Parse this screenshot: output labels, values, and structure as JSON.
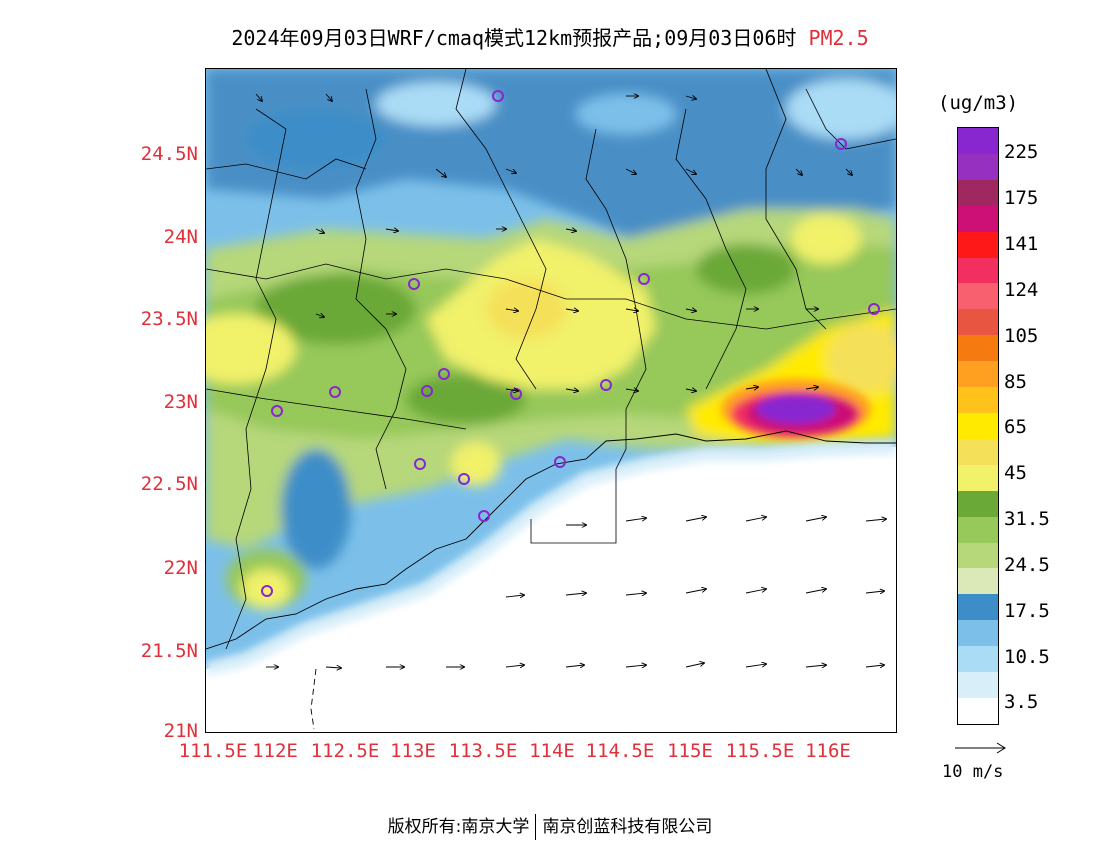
{
  "title": {
    "main": "2024年09月03日WRF/cmaq模式12km预报产品;09月03日06时",
    "pollutant": "PM2.5"
  },
  "axes": {
    "y_ticks": [
      "24.5N",
      "24N",
      "23.5N",
      "23N",
      "22.5N",
      "22N",
      "21.5N",
      "21N"
    ],
    "x_ticks": [
      "111.5E",
      "112E",
      "112.5E",
      "113E",
      "113.5E",
      "114E",
      "114.5E",
      "115E",
      "115.5E",
      "116E"
    ]
  },
  "colorbar": {
    "unit": "(ug/m3)",
    "labels": [
      "225",
      "175",
      "141",
      "124",
      "105",
      "85",
      "65",
      "45",
      "31.5",
      "24.5",
      "17.5",
      "10.5",
      "3.5"
    ],
    "colors": [
      "#ffffff",
      "#d8eef9",
      "#aadcf6",
      "#7cc0ea",
      "#3d8ec8",
      "#dbe9b8",
      "#b6d77a",
      "#96c85a",
      "#6aa838",
      "#f1f16a",
      "#f5e05a",
      "#ffea00",
      "#ffc21a",
      "#ffa020",
      "#f57a10",
      "#e85540",
      "#f86070",
      "#f23060",
      "#ff1818",
      "#cc1075",
      "#a02860",
      "#9630c0",
      "#8826d0"
    ]
  },
  "reference_vector": {
    "label": "10 m/s"
  },
  "footer": {
    "left": "版权所有:南京大学",
    "right": "南京创蓝科技有限公司"
  }
}
